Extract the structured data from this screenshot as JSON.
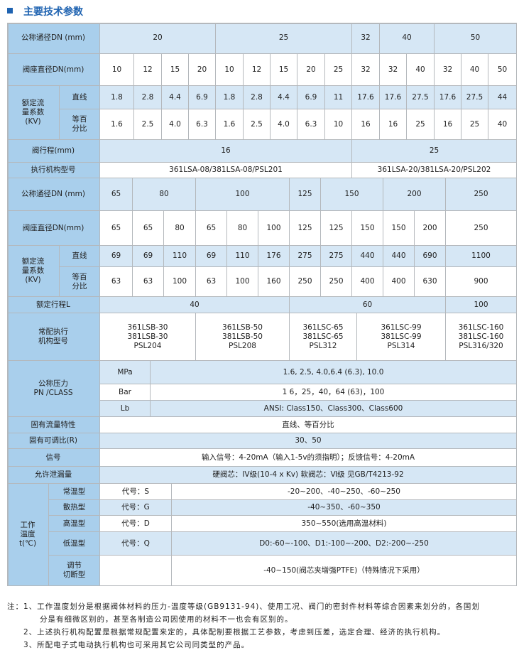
{
  "title": "主要技术参数",
  "colors": {
    "title": "#1f63b1",
    "label_bg": "#a9cfec",
    "light_bg": "#d6e7f5"
  },
  "s1": {
    "dn_label": "公称通径DN (mm)",
    "dn": [
      "20",
      "25",
      "32",
      "40",
      "50"
    ],
    "seat_label": "阀座直径DN(mm)",
    "seats": [
      "10",
      "12",
      "15",
      "20",
      "10",
      "12",
      "15",
      "20",
      "25",
      "32",
      "32",
      "40",
      "32",
      "40",
      "50"
    ],
    "kv_label": "额定流\n量系数\n(KV)",
    "linear_label": "直线",
    "linear": [
      "1.8",
      "2.8",
      "4.4",
      "6.9",
      "1.8",
      "2.8",
      "4.4",
      "6.9",
      "11",
      "17.6",
      "17.6",
      "27.5",
      "17.6",
      "27.5",
      "44"
    ],
    "eqp_label": "等百\n分比",
    "eqp": [
      "1.6",
      "2.5",
      "4.0",
      "6.3",
      "1.6",
      "2.5",
      "4.0",
      "6.3",
      "10",
      "16",
      "16",
      "25",
      "16",
      "25",
      "40"
    ],
    "stroke_label": "阀行程(mm)",
    "stroke": [
      "16",
      "25"
    ],
    "actuator_label": "执行机构型号",
    "actuators": [
      "361LSA-08/381LSA-08/PSL201",
      "361LSA-20/381LSA-20/PSL202"
    ]
  },
  "s2": {
    "dn_label": "公称通径DN (mm)",
    "dn": [
      "65",
      "80",
      "100",
      "125",
      "150",
      "200",
      "250"
    ],
    "seat_label": "阀座直径DN(mm)",
    "seats": [
      "65",
      "65",
      "80",
      "65",
      "80",
      "100",
      "125",
      "125",
      "150",
      "150",
      "200",
      "250"
    ],
    "kv_label": "额定流\n量系数\n(KV)",
    "linear_label": "直线",
    "linear": [
      "69",
      "69",
      "110",
      "69",
      "110",
      "176",
      "275",
      "275",
      "440",
      "440",
      "690",
      "1100"
    ],
    "eqp_label": "等百\n分比",
    "eqp": [
      "63",
      "63",
      "100",
      "63",
      "100",
      "160",
      "250",
      "250",
      "400",
      "400",
      "630",
      "900"
    ],
    "stroke_label": "额定行程L",
    "stroke": [
      "40",
      "60",
      "100"
    ],
    "actuator_label": "常配执行\n机构型号",
    "actuators": [
      "361LSB-30\n381LSB-30\nPSL204",
      "361LSB-50\n381LSB-50\nPSL208",
      "361LSC-65\n381LSC-65\nPSL312",
      "361LSC-99\n381LSC-99\nPSL314",
      "361LSC-160\n381LSC-160\nPSL316/320"
    ]
  },
  "pressure": {
    "label": "公称压力\nPN /CLASS",
    "units": [
      {
        "unit": "MPa",
        "values": "1.6, 2.5, 4.0,6.4 (6.3), 10.0"
      },
      {
        "unit": "Bar",
        "values": "1 6，25，40，64 (63)，100"
      },
      {
        "unit": "Lb",
        "values": "ANSI: Class150、Class300、Class600"
      }
    ]
  },
  "rows": [
    {
      "label": "固有流量特性",
      "value": "直线、等百分比"
    },
    {
      "label": "固有可调比(R)",
      "value": "30、50"
    },
    {
      "label": "信号",
      "value": "输入信号：4-20mA（输入1-5v的须指明）；反馈信号：4-20mA"
    },
    {
      "label": "允许泄漏量",
      "value": "硬阀芯：IV级(10-4 x Kv)      软阀芯：Ⅵ级      见GB/T4213-92"
    }
  ],
  "temperature": {
    "label": "工作\n温度\nt(℃)",
    "types": [
      {
        "name": "常温型",
        "code": "代号：S",
        "range": "-20~200、-40~250、-60~250"
      },
      {
        "name": "散热型",
        "code": "代号：G",
        "range": "-40~350、-60~350"
      },
      {
        "name": "高温型",
        "code": "代号：D",
        "range": "350~550(选用高温材料)"
      },
      {
        "name": "低温型",
        "code": "代号：Q",
        "range": "D0:-60~-100、D1:-100~-200、D2:-200~-250"
      },
      {
        "name": "调节\n切断型",
        "code": "",
        "range": "-40~150(阀芯夹增强PTFE)（特殊情况下采用）"
      }
    ]
  },
  "notes": [
    "注：1、工作温度划分是根据阀体材料的压力-温度等级(GB9131-94)、使用工况、阀门的密封件材料等综合因素来划分的，各国划",
    "分是有细微区别的，甚至各制造公司因使用的材料不一也会有区别的。",
    "2、上述执行机构配置是根据常规配置来定的，具体配制要根据工艺参数，考虑到压差，选定合理、经济的执行机构。",
    "3、所配电子式电动执行机构也可采用其它公司同类型的产品。"
  ]
}
